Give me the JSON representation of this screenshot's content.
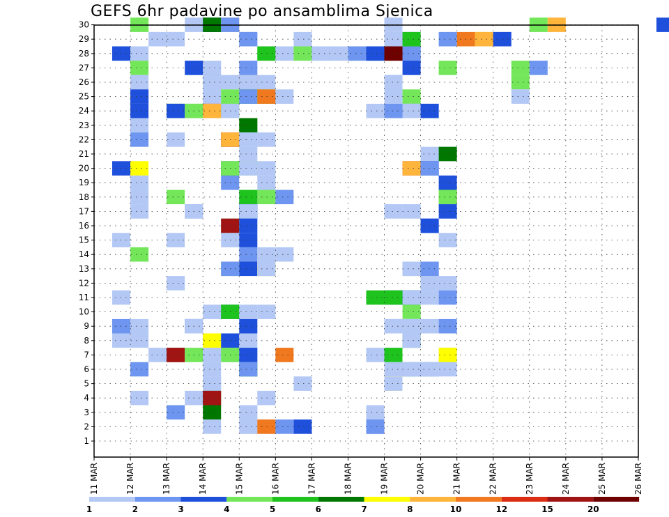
{
  "chart_data": {
    "type": "heatmap",
    "title": "GEFS 6hr padavine po ansamblima Sjenica",
    "x_tick_labels": [
      "11 MAR",
      "12 MAR",
      "13 MAR",
      "14 MAR",
      "15 MAR",
      "16 MAR",
      "17 MAR",
      "18 MAR",
      "19 MAR",
      "20 MAR",
      "21 MAR",
      "22 MAR",
      "23 MAR",
      "24 MAR",
      "25 MAR",
      "26 MAR"
    ],
    "y_tick_labels": [
      "1",
      "2",
      "3",
      "4",
      "5",
      "6",
      "7",
      "8",
      "9",
      "10",
      "11",
      "12",
      "13",
      "14",
      "15",
      "16",
      "17",
      "18",
      "19",
      "20",
      "21",
      "22",
      "23",
      "24",
      "25",
      "26",
      "27",
      "28",
      "29",
      "30"
    ],
    "xlim_days": [
      11,
      26
    ],
    "steps_per_day": 4,
    "ylim": [
      0,
      30
    ],
    "grid": true,
    "colorbar": {
      "levels": [
        "1",
        "2",
        "3",
        "4",
        "5",
        "6",
        "7",
        "8",
        "10",
        "12",
        "15",
        "20"
      ],
      "colors": [
        "#b4c8f5",
        "#6e96f0",
        "#1e50dc",
        "#73e65a",
        "#1ec31e",
        "#007800",
        "#ffff00",
        "#ffb43c",
        "#f0781e",
        "#dc2d14",
        "#a01414",
        "#6e0000"
      ]
    },
    "cells": [
      [
        2,
        30,
        4
      ],
      [
        5,
        30,
        1
      ],
      [
        6,
        30,
        3
      ],
      [
        6,
        30,
        6
      ],
      [
        7,
        30,
        9
      ],
      [
        7,
        30,
        2
      ],
      [
        16,
        30,
        1
      ],
      [
        24,
        30,
        4
      ],
      [
        25,
        30,
        8
      ],
      [
        31,
        30,
        3
      ],
      [
        3,
        29,
        1
      ],
      [
        4,
        29,
        1
      ],
      [
        8,
        29,
        1
      ],
      [
        8,
        29,
        2
      ],
      [
        11,
        29,
        1
      ],
      [
        17,
        29,
        2
      ],
      [
        16,
        29,
        1
      ],
      [
        17,
        29,
        5
      ],
      [
        19,
        29,
        2
      ],
      [
        20,
        29,
        10
      ],
      [
        21,
        29,
        7
      ],
      [
        21,
        29,
        8
      ],
      [
        22,
        29,
        1
      ],
      [
        22,
        29,
        3
      ],
      [
        1,
        28,
        1
      ],
      [
        1,
        28,
        3
      ],
      [
        2,
        28,
        1
      ],
      [
        9,
        28,
        4
      ],
      [
        9,
        28,
        5
      ],
      [
        10,
        28,
        1
      ],
      [
        11,
        28,
        1
      ],
      [
        11,
        28,
        4
      ],
      [
        12,
        28,
        2
      ],
      [
        12,
        28,
        1
      ],
      [
        13,
        28,
        1
      ],
      [
        14,
        28,
        1
      ],
      [
        14,
        28,
        2
      ],
      [
        15,
        28,
        1
      ],
      [
        15,
        28,
        5
      ],
      [
        15,
        28,
        3
      ],
      [
        16,
        28,
        14
      ],
      [
        16,
        28,
        20
      ],
      [
        17,
        28,
        3
      ],
      [
        17,
        28,
        2
      ],
      [
        2,
        27,
        4
      ],
      [
        5,
        27,
        3
      ],
      [
        6,
        27,
        1
      ],
      [
        8,
        27,
        2
      ],
      [
        17,
        27,
        3
      ],
      [
        19,
        27,
        4
      ],
      [
        23,
        27,
        4
      ],
      [
        24,
        27,
        2
      ],
      [
        2,
        26,
        1
      ],
      [
        6,
        26,
        2
      ],
      [
        6,
        26,
        1
      ],
      [
        7,
        26,
        1
      ],
      [
        8,
        26,
        15
      ],
      [
        8,
        26,
        1
      ],
      [
        8,
        26,
        1
      ],
      [
        9,
        26,
        1
      ],
      [
        16,
        26,
        2
      ],
      [
        16,
        26,
        1
      ],
      [
        23,
        26,
        4
      ],
      [
        2,
        25,
        1
      ],
      [
        2,
        25,
        3
      ],
      [
        6,
        25,
        1
      ],
      [
        6,
        25,
        1
      ],
      [
        7,
        25,
        4
      ],
      [
        8,
        25,
        5
      ],
      [
        8,
        25,
        2
      ],
      [
        9,
        25,
        4
      ],
      [
        9,
        25,
        10
      ],
      [
        10,
        25,
        1
      ],
      [
        16,
        25,
        1
      ],
      [
        17,
        25,
        4
      ],
      [
        23,
        25,
        1
      ],
      [
        2,
        24,
        3
      ],
      [
        4,
        24,
        6
      ],
      [
        4,
        24,
        3
      ],
      [
        5,
        24,
        4
      ],
      [
        5,
        24,
        4
      ],
      [
        6,
        24,
        12
      ],
      [
        6,
        24,
        8
      ],
      [
        7,
        24,
        5
      ],
      [
        7,
        24,
        1
      ],
      [
        15,
        24,
        1
      ],
      [
        16,
        24,
        2
      ],
      [
        17,
        24,
        1
      ],
      [
        17,
        24,
        2
      ],
      [
        17,
        24,
        1
      ],
      [
        18,
        24,
        1
      ],
      [
        18,
        24,
        3
      ],
      [
        2,
        23,
        1
      ],
      [
        8,
        23,
        4
      ],
      [
        8,
        23,
        6
      ],
      [
        2,
        22,
        2
      ],
      [
        4,
        22,
        1
      ],
      [
        7,
        22,
        3
      ],
      [
        7,
        22,
        12
      ],
      [
        7,
        22,
        8
      ],
      [
        8,
        22,
        1
      ],
      [
        8,
        22,
        1
      ],
      [
        9,
        22,
        1
      ],
      [
        8,
        21,
        1
      ],
      [
        18,
        21,
        1
      ],
      [
        19,
        21,
        1
      ],
      [
        19,
        21,
        6
      ],
      [
        1,
        20,
        3
      ],
      [
        2,
        20,
        7
      ],
      [
        7,
        20,
        6
      ],
      [
        7,
        20,
        4
      ],
      [
        8,
        20,
        1
      ],
      [
        8,
        20,
        4
      ],
      [
        8,
        20,
        1
      ],
      [
        9,
        20,
        1
      ],
      [
        17,
        20,
        12
      ],
      [
        17,
        20,
        8
      ],
      [
        18,
        20,
        3
      ],
      [
        18,
        20,
        3
      ],
      [
        18,
        20,
        2
      ],
      [
        2,
        19,
        1
      ],
      [
        7,
        19,
        2
      ],
      [
        9,
        19,
        1
      ],
      [
        19,
        19,
        3
      ],
      [
        2,
        18,
        1
      ],
      [
        2,
        18,
        1
      ],
      [
        4,
        18,
        4
      ],
      [
        8,
        18,
        1
      ],
      [
        8,
        18,
        2
      ],
      [
        8,
        18,
        5
      ],
      [
        9,
        18,
        4
      ],
      [
        10,
        18,
        2
      ],
      [
        19,
        18,
        3
      ],
      [
        19,
        18,
        20
      ],
      [
        19,
        18,
        7
      ],
      [
        19,
        18,
        4
      ],
      [
        2,
        17,
        1
      ],
      [
        5,
        17,
        1
      ],
      [
        5,
        17,
        1
      ],
      [
        8,
        17,
        3
      ],
      [
        8,
        17,
        2
      ],
      [
        8,
        17,
        3
      ],
      [
        8,
        17,
        1
      ],
      [
        16,
        17,
        1
      ],
      [
        17,
        17,
        1
      ],
      [
        19,
        17,
        3
      ],
      [
        7,
        16,
        1
      ],
      [
        7,
        16,
        1
      ],
      [
        7,
        16,
        4
      ],
      [
        7,
        16,
        15
      ],
      [
        8,
        16,
        3
      ],
      [
        18,
        16,
        1
      ],
      [
        18,
        16,
        2
      ],
      [
        18,
        16,
        3
      ],
      [
        1,
        15,
        1
      ],
      [
        4,
        15,
        1
      ],
      [
        7,
        15,
        1
      ],
      [
        8,
        15,
        3
      ],
      [
        19,
        15,
        1
      ],
      [
        2,
        14,
        4
      ],
      [
        8,
        14,
        2
      ],
      [
        9,
        14,
        1
      ],
      [
        10,
        14,
        1
      ],
      [
        7,
        13,
        4
      ],
      [
        7,
        13,
        2
      ],
      [
        8,
        13,
        3
      ],
      [
        9,
        13,
        2
      ],
      [
        9,
        13,
        7
      ],
      [
        9,
        13,
        1
      ],
      [
        17,
        13,
        1
      ],
      [
        17,
        13,
        1
      ],
      [
        18,
        13,
        2
      ],
      [
        18,
        13,
        2
      ],
      [
        4,
        12,
        1
      ],
      [
        18,
        12,
        1
      ],
      [
        18,
        12,
        1
      ],
      [
        19,
        12,
        1
      ],
      [
        1,
        11,
        1
      ],
      [
        15,
        11,
        5
      ],
      [
        16,
        11,
        3
      ],
      [
        16,
        11,
        1
      ],
      [
        16,
        11,
        5
      ],
      [
        17,
        11,
        3
      ],
      [
        17,
        11,
        3
      ],
      [
        17,
        11,
        1
      ],
      [
        18,
        11,
        1
      ],
      [
        19,
        11,
        2
      ],
      [
        6,
        10,
        1
      ],
      [
        7,
        10,
        1
      ],
      [
        7,
        10,
        2
      ],
      [
        7,
        10,
        5
      ],
      [
        8,
        10,
        1
      ],
      [
        9,
        10,
        1
      ],
      [
        17,
        10,
        4
      ],
      [
        1,
        9,
        2
      ],
      [
        2,
        9,
        1
      ],
      [
        5,
        9,
        3
      ],
      [
        5,
        9,
        1
      ],
      [
        8,
        9,
        3
      ],
      [
        16,
        9,
        1
      ],
      [
        16,
        9,
        1
      ],
      [
        17,
        9,
        1
      ],
      [
        17,
        9,
        1
      ],
      [
        18,
        9,
        1
      ],
      [
        19,
        9,
        2
      ],
      [
        1,
        8,
        1
      ],
      [
        2,
        8,
        1
      ],
      [
        6,
        8,
        7
      ],
      [
        6,
        8,
        7
      ],
      [
        7,
        8,
        3
      ],
      [
        8,
        8,
        1
      ],
      [
        17,
        8,
        2
      ],
      [
        17,
        8,
        5
      ],
      [
        17,
        8,
        1
      ],
      [
        3,
        7,
        1
      ],
      [
        4,
        7,
        15
      ],
      [
        4,
        7,
        15
      ],
      [
        5,
        7,
        4
      ],
      [
        6,
        7,
        1
      ],
      [
        6,
        7,
        1
      ],
      [
        7,
        7,
        1
      ],
      [
        7,
        7,
        4
      ],
      [
        8,
        7,
        1
      ],
      [
        8,
        7,
        3
      ],
      [
        10,
        7,
        10
      ],
      [
        15,
        7,
        1
      ],
      [
        16,
        7,
        5
      ],
      [
        19,
        7,
        2
      ],
      [
        19,
        7,
        7
      ],
      [
        2,
        6,
        2
      ],
      [
        6,
        6,
        1
      ],
      [
        8,
        6,
        2
      ],
      [
        8,
        6,
        3
      ],
      [
        8,
        6,
        4
      ],
      [
        8,
        6,
        2
      ],
      [
        16,
        6,
        1
      ],
      [
        17,
        6,
        3
      ],
      [
        17,
        6,
        5
      ],
      [
        17,
        6,
        1
      ],
      [
        17,
        6,
        1
      ],
      [
        18,
        6,
        2
      ],
      [
        18,
        6,
        1
      ],
      [
        19,
        6,
        1
      ],
      [
        6,
        5,
        1
      ],
      [
        6,
        5,
        1
      ],
      [
        11,
        5,
        1
      ],
      [
        16,
        5,
        7
      ],
      [
        16,
        5,
        1
      ],
      [
        2,
        4,
        1
      ],
      [
        5,
        4,
        1
      ],
      [
        6,
        4,
        6
      ],
      [
        6,
        4,
        15
      ],
      [
        9,
        4,
        1
      ],
      [
        4,
        3,
        1
      ],
      [
        4,
        3,
        2
      ],
      [
        6,
        3,
        6
      ],
      [
        8,
        3,
        1
      ],
      [
        8,
        3,
        1
      ],
      [
        15,
        3,
        4
      ],
      [
        15,
        3,
        1
      ],
      [
        6,
        2,
        1
      ],
      [
        8,
        2,
        1
      ],
      [
        8,
        2,
        1
      ],
      [
        9,
        2,
        1
      ],
      [
        9,
        2,
        10
      ],
      [
        10,
        2,
        2
      ],
      [
        11,
        2,
        3
      ],
      [
        15,
        2,
        2
      ],
      [
        15,
        2,
        2
      ]
    ]
  }
}
